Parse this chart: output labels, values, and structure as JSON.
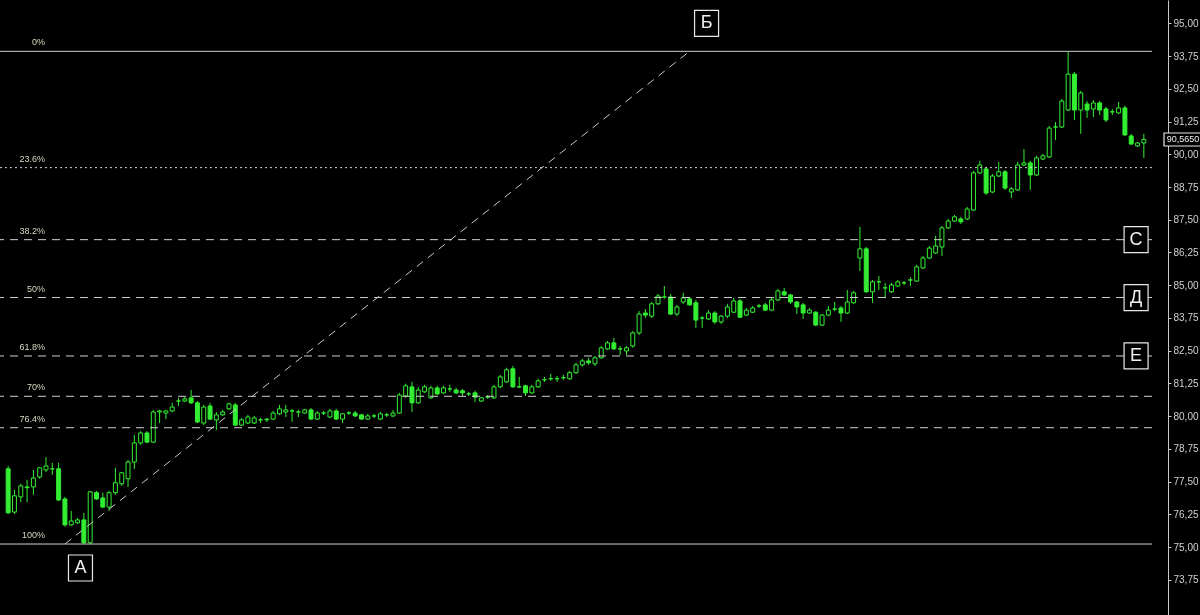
{
  "chart_data": {
    "type": "candlestick",
    "color": "#33ee33",
    "categories": [
      null,
      null,
      null,
      null,
      null,
      null,
      null,
      null,
      null,
      null,
      null,
      null,
      null,
      null,
      null,
      null,
      null,
      null,
      null,
      null,
      null,
      null,
      null,
      null,
      null,
      null,
      null,
      null,
      null,
      null,
      null,
      null,
      null,
      null,
      null,
      null,
      null,
      null,
      null,
      null,
      null,
      null,
      null,
      null,
      null,
      null,
      null,
      null,
      null,
      null,
      null,
      null,
      null,
      null,
      null,
      null,
      null,
      null,
      null,
      null,
      null,
      null,
      null,
      null,
      null,
      null,
      null,
      null,
      null,
      null,
      null,
      null,
      null,
      null,
      null,
      null,
      null,
      null,
      null,
      null,
      null,
      null,
      null,
      null,
      null,
      null,
      null,
      null,
      null,
      null,
      null,
      null,
      null,
      null,
      null,
      null,
      null,
      null,
      null,
      null,
      null,
      null,
      null,
      null,
      null,
      null,
      null,
      null,
      null,
      null,
      null,
      null,
      null,
      null,
      null,
      null,
      null,
      null,
      null,
      null,
      null,
      null,
      null,
      null,
      null,
      null,
      null,
      null,
      null,
      null,
      null,
      null,
      null,
      null,
      null,
      null,
      null,
      null,
      null,
      null,
      null,
      null,
      null,
      null,
      null,
      null,
      null,
      null,
      null,
      null,
      null,
      null,
      null,
      null,
      null,
      null,
      null,
      null,
      null,
      null,
      null,
      null,
      null,
      null,
      null,
      null,
      null,
      null,
      null,
      null,
      null,
      null,
      null,
      null,
      null,
      null,
      null,
      null,
      null,
      null,
      null
    ],
    "ohlc": [
      [
        77.99,
        78.1,
        76.27,
        76.31
      ],
      [
        76.34,
        77.19,
        76.27,
        76.96
      ],
      [
        76.92,
        77.42,
        76.72,
        77.34
      ],
      [
        77.3,
        77.57,
        76.72,
        77.27
      ],
      [
        77.3,
        77.95,
        77.0,
        77.64
      ],
      [
        77.68,
        78.06,
        77.61,
        78.03
      ],
      [
        77.95,
        78.44,
        77.87,
        78.1
      ],
      [
        77.99,
        78.22,
        77.76,
        77.99
      ],
      [
        77.99,
        78.22,
        76.76,
        76.8
      ],
      [
        76.84,
        76.92,
        75.78,
        75.85
      ],
      [
        75.85,
        76.38,
        75.81,
        76.0
      ],
      [
        75.93,
        76.11,
        75.89,
        76.04
      ],
      [
        76.04,
        76.31,
        75.12,
        75.17
      ],
      [
        75.17,
        77.15,
        75.12,
        77.11
      ],
      [
        77.08,
        77.15,
        76.8,
        76.84
      ],
      [
        76.88,
        77.08,
        76.49,
        76.53
      ],
      [
        76.53,
        77.15,
        76.38,
        77.08
      ],
      [
        77.08,
        78.03,
        77.0,
        77.46
      ],
      [
        77.42,
        77.87,
        77.34,
        77.84
      ],
      [
        77.61,
        78.33,
        77.3,
        78.25
      ],
      [
        78.25,
        79.28,
        77.99,
        78.98
      ],
      [
        78.98,
        79.43,
        78.9,
        79.36
      ],
      [
        79.36,
        79.43,
        78.98,
        79.01
      ],
      [
        79.01,
        80.24,
        78.98,
        80.16
      ],
      [
        80.16,
        80.24,
        79.74,
        80.2
      ],
      [
        80.12,
        80.24,
        79.89,
        80.2
      ],
      [
        80.2,
        80.51,
        80.16,
        80.35
      ],
      [
        80.58,
        80.7,
        80.39,
        80.58
      ],
      [
        80.58,
        80.73,
        80.54,
        80.66
      ],
      [
        80.7,
        81.0,
        80.47,
        80.51
      ],
      [
        80.51,
        80.58,
        79.74,
        79.78
      ],
      [
        79.74,
        80.43,
        79.66,
        80.35
      ],
      [
        80.39,
        80.51,
        79.86,
        79.89
      ],
      [
        79.86,
        80.16,
        79.47,
        80.05
      ],
      [
        80.05,
        80.24,
        80.01,
        80.16
      ],
      [
        80.28,
        80.51,
        80.24,
        80.47
      ],
      [
        80.43,
        80.51,
        79.63,
        79.66
      ],
      [
        79.66,
        79.93,
        79.63,
        79.86
      ],
      [
        79.74,
        80.05,
        79.7,
        79.97
      ],
      [
        79.74,
        80.01,
        79.7,
        79.93
      ],
      [
        79.86,
        79.93,
        79.74,
        79.86
      ],
      [
        79.86,
        79.93,
        79.78,
        79.89
      ],
      [
        79.89,
        80.2,
        79.86,
        80.12
      ],
      [
        80.09,
        80.43,
        80.05,
        80.28
      ],
      [
        80.16,
        80.43,
        79.97,
        80.24
      ],
      [
        80.2,
        80.28,
        79.78,
        80.2
      ],
      [
        80.16,
        80.24,
        79.97,
        80.16
      ],
      [
        80.12,
        80.28,
        80.09,
        80.24
      ],
      [
        80.24,
        80.31,
        79.86,
        79.89
      ],
      [
        79.89,
        80.2,
        79.86,
        80.12
      ],
      [
        80.12,
        80.2,
        80.05,
        80.12
      ],
      [
        79.97,
        80.28,
        79.93,
        80.2
      ],
      [
        80.2,
        80.28,
        79.86,
        79.89
      ],
      [
        79.89,
        80.12,
        79.74,
        80.09
      ],
      [
        80.12,
        80.2,
        80.05,
        80.12
      ],
      [
        80.12,
        80.2,
        79.97,
        80.01
      ],
      [
        80.05,
        80.09,
        79.86,
        79.89
      ],
      [
        79.89,
        80.09,
        79.86,
        80.01
      ],
      [
        80.01,
        80.09,
        79.93,
        80.01
      ],
      [
        79.89,
        80.16,
        79.86,
        80.09
      ],
      [
        80.05,
        80.12,
        79.97,
        80.05
      ],
      [
        80.01,
        80.24,
        79.97,
        80.12
      ],
      [
        80.12,
        80.89,
        80.09,
        80.81
      ],
      [
        80.77,
        81.24,
        80.7,
        81.16
      ],
      [
        81.12,
        81.31,
        80.16,
        80.51
      ],
      [
        80.51,
        81.12,
        80.47,
        81.0
      ],
      [
        80.93,
        81.2,
        80.89,
        81.12
      ],
      [
        80.7,
        81.16,
        80.66,
        81.08
      ],
      [
        81.08,
        81.16,
        80.81,
        80.85
      ],
      [
        80.89,
        81.16,
        80.85,
        81.08
      ],
      [
        81.04,
        81.2,
        80.93,
        81.04
      ],
      [
        81.0,
        81.08,
        80.85,
        80.89
      ],
      [
        80.97,
        81.04,
        80.77,
        80.89
      ],
      [
        80.85,
        80.93,
        80.77,
        80.85
      ],
      [
        80.89,
        80.97,
        80.54,
        80.73
      ],
      [
        80.58,
        80.73,
        80.54,
        80.7
      ],
      [
        80.73,
        80.81,
        80.66,
        80.73
      ],
      [
        80.7,
        81.2,
        80.66,
        81.12
      ],
      [
        81.12,
        81.58,
        81.08,
        81.5
      ],
      [
        81.31,
        81.85,
        81.27,
        81.77
      ],
      [
        81.81,
        81.92,
        81.08,
        81.12
      ],
      [
        81.12,
        81.5,
        81.08,
        81.12
      ],
      [
        81.16,
        81.2,
        80.77,
        80.89
      ],
      [
        80.89,
        81.2,
        80.85,
        81.12
      ],
      [
        81.12,
        81.43,
        81.08,
        81.35
      ],
      [
        81.39,
        81.5,
        81.31,
        81.39
      ],
      [
        81.43,
        81.62,
        81.35,
        81.43
      ],
      [
        81.43,
        81.54,
        81.31,
        81.43
      ],
      [
        81.47,
        81.58,
        81.39,
        81.47
      ],
      [
        81.43,
        81.73,
        81.39,
        81.66
      ],
      [
        81.66,
        82.04,
        81.62,
        81.96
      ],
      [
        81.96,
        82.19,
        81.89,
        82.11
      ],
      [
        82.11,
        82.23,
        81.96,
        82.04
      ],
      [
        82.0,
        82.3,
        81.92,
        82.23
      ],
      [
        82.23,
        82.68,
        82.19,
        82.61
      ],
      [
        82.57,
        82.87,
        82.53,
        82.8
      ],
      [
        82.8,
        82.99,
        82.53,
        82.57
      ],
      [
        82.57,
        82.68,
        82.34,
        82.57
      ],
      [
        82.49,
        82.68,
        82.34,
        82.61
      ],
      [
        82.68,
        83.25,
        82.61,
        83.18
      ],
      [
        83.18,
        84.01,
        83.1,
        83.9
      ],
      [
        83.94,
        84.09,
        83.75,
        83.86
      ],
      [
        83.82,
        84.36,
        83.75,
        84.29
      ],
      [
        84.29,
        84.67,
        84.25,
        84.59
      ],
      [
        84.55,
        84.97,
        84.48,
        84.55
      ],
      [
        84.55,
        84.67,
        83.86,
        83.9
      ],
      [
        83.9,
        84.25,
        83.82,
        84.17
      ],
      [
        84.36,
        84.71,
        84.29,
        84.52
      ],
      [
        84.48,
        84.55,
        84.21,
        84.25
      ],
      [
        84.33,
        84.44,
        83.37,
        83.67
      ],
      [
        83.75,
        83.82,
        83.37,
        83.75
      ],
      [
        83.71,
        84.05,
        83.67,
        83.94
      ],
      [
        83.94,
        84.01,
        83.52,
        83.6
      ],
      [
        83.6,
        83.86,
        83.52,
        83.82
      ],
      [
        83.82,
        84.29,
        83.75,
        84.17
      ],
      [
        83.97,
        84.52,
        83.94,
        84.4
      ],
      [
        84.4,
        84.48,
        83.75,
        83.78
      ],
      [
        83.86,
        84.13,
        83.82,
        84.05
      ],
      [
        83.97,
        84.21,
        83.94,
        84.13
      ],
      [
        84.21,
        84.29,
        84.13,
        84.21
      ],
      [
        84.25,
        84.33,
        84.01,
        84.05
      ],
      [
        84.05,
        84.55,
        84.01,
        84.44
      ],
      [
        84.44,
        84.86,
        84.4,
        84.78
      ],
      [
        84.75,
        84.9,
        84.59,
        84.63
      ],
      [
        84.63,
        84.67,
        84.29,
        84.36
      ],
      [
        84.36,
        84.4,
        83.9,
        84.17
      ],
      [
        84.25,
        84.33,
        83.71,
        83.94
      ],
      [
        83.94,
        84.13,
        83.9,
        84.05
      ],
      [
        83.97,
        84.01,
        83.44,
        83.48
      ],
      [
        83.48,
        83.9,
        83.44,
        83.86
      ],
      [
        83.86,
        84.21,
        83.82,
        84.05
      ],
      [
        84.09,
        84.36,
        84.01,
        84.09
      ],
      [
        84.13,
        84.21,
        83.6,
        83.94
      ],
      [
        83.94,
        84.82,
        83.9,
        84.36
      ],
      [
        84.33,
        84.78,
        84.29,
        84.71
      ],
      [
        86.04,
        87.23,
        85.54,
        86.39
      ],
      [
        86.39,
        86.46,
        84.71,
        84.75
      ],
      [
        84.75,
        85.2,
        84.33,
        85.13
      ],
      [
        85.13,
        85.35,
        84.82,
        85.13
      ],
      [
        84.9,
        85.09,
        84.55,
        84.9
      ],
      [
        84.75,
        85.09,
        84.71,
        85.01
      ],
      [
        84.97,
        85.2,
        84.94,
        85.13
      ],
      [
        85.09,
        85.16,
        85.01,
        85.09
      ],
      [
        85.2,
        85.31,
        84.97,
        85.2
      ],
      [
        85.16,
        85.78,
        85.13,
        85.7
      ],
      [
        85.66,
        86.12,
        85.62,
        86.04
      ],
      [
        86.04,
        86.5,
        86.0,
        86.42
      ],
      [
        86.23,
        86.88,
        86.2,
        86.5
      ],
      [
        86.46,
        87.26,
        86.12,
        87.19
      ],
      [
        87.19,
        87.53,
        87.15,
        87.45
      ],
      [
        87.45,
        87.68,
        87.42,
        87.61
      ],
      [
        87.53,
        87.61,
        87.34,
        87.42
      ],
      [
        87.53,
        87.99,
        87.49,
        87.91
      ],
      [
        87.87,
        89.36,
        87.84,
        89.29
      ],
      [
        89.29,
        89.75,
        89.25,
        89.59
      ],
      [
        89.44,
        89.52,
        88.45,
        88.52
      ],
      [
        88.56,
        89.25,
        88.52,
        89.17
      ],
      [
        89.17,
        89.71,
        89.13,
        89.33
      ],
      [
        89.33,
        89.4,
        88.64,
        88.71
      ],
      [
        88.56,
        88.75,
        88.33,
        88.68
      ],
      [
        88.64,
        89.71,
        88.6,
        89.59
      ],
      [
        89.59,
        90.2,
        89.55,
        89.67
      ],
      [
        89.67,
        89.75,
        88.64,
        89.21
      ],
      [
        89.21,
        89.94,
        89.17,
        89.86
      ],
      [
        89.82,
        90.01,
        89.78,
        89.94
      ],
      [
        89.9,
        91.08,
        89.86,
        91.0
      ],
      [
        91.04,
        91.23,
        90.55,
        91.04
      ],
      [
        91.04,
        92.11,
        91.0,
        92.03
      ],
      [
        91.69,
        93.9,
        91.65,
        93.06
      ],
      [
        93.06,
        93.14,
        91.31,
        91.69
      ],
      [
        91.69,
        92.42,
        90.78,
        92.34
      ],
      [
        91.92,
        92.03,
        91.39,
        91.69
      ],
      [
        91.73,
        92.07,
        91.42,
        91.96
      ],
      [
        91.96,
        92.03,
        91.5,
        91.69
      ],
      [
        91.73,
        91.81,
        91.23,
        91.31
      ],
      [
        91.62,
        91.73,
        91.5,
        91.62
      ],
      [
        91.58,
        92.0,
        91.54,
        91.77
      ],
      [
        91.77,
        91.85,
        90.7,
        90.74
      ],
      [
        90.7,
        90.78,
        90.36,
        90.39
      ],
      [
        90.32,
        90.47,
        90.28,
        90.43
      ],
      [
        90.43,
        90.78,
        89.86,
        90.565
      ]
    ],
    "series": [
      {
        "type": "line",
        "color": "#c8c8c8",
        "line_style": "dashed",
        "values": [
          null,
          null,
          null,
          null,
          null,
          null,
          null,
          null,
          null,
          75.12,
          null,
          null,
          null,
          null,
          null,
          null,
          null,
          null,
          null,
          null,
          null,
          null,
          null,
          null,
          null,
          null,
          null,
          null,
          null,
          null,
          null,
          null,
          null,
          null,
          null,
          null,
          null,
          null,
          null,
          null,
          null,
          null,
          null,
          null,
          null,
          null,
          null,
          null,
          null,
          null,
          null,
          null,
          null,
          null,
          null,
          null,
          null,
          null,
          null,
          null,
          null,
          null,
          null,
          null,
          null,
          null,
          null,
          null,
          null,
          null,
          null,
          null,
          null,
          null,
          null,
          null,
          null,
          null,
          null,
          null,
          null,
          null,
          null,
          null,
          null,
          null,
          null,
          null,
          null,
          null,
          null,
          null,
          null,
          null,
          null,
          null,
          null,
          null,
          null,
          null,
          null,
          null,
          null,
          null,
          null,
          null,
          null,
          null,
          93.93,
          null,
          null,
          null,
          null,
          null,
          null,
          null,
          null,
          null,
          null,
          null,
          null,
          null,
          null,
          null,
          null,
          null,
          null,
          null,
          null,
          null,
          null,
          null,
          null,
          null,
          null,
          null,
          null,
          null,
          null,
          null,
          null,
          null,
          null,
          null,
          null,
          null,
          null,
          null,
          null,
          null,
          null,
          null,
          null,
          null,
          null,
          null,
          null,
          null,
          null,
          null,
          null,
          null,
          null,
          null,
          null,
          null,
          null,
          null,
          null,
          null,
          null,
          null,
          null,
          null,
          null,
          null,
          null,
          null,
          null,
          null,
          null
        ]
      }
    ],
    "ylim": [
      72.41,
      95.89
    ],
    "yticks": [
      {
        "value": 73.75,
        "label": "73,75"
      },
      {
        "value": 75,
        "label": "75,00"
      },
      {
        "value": 76.25,
        "label": "76,25"
      },
      {
        "value": 77.5,
        "label": "77,50"
      },
      {
        "value": 78.75,
        "label": "78,75"
      },
      {
        "value": 80,
        "label": "80,00"
      },
      {
        "value": 81.25,
        "label": "81,25"
      },
      {
        "value": 82.5,
        "label": "82,50"
      },
      {
        "value": 83.75,
        "label": "83,75"
      },
      {
        "value": 85,
        "label": "85,00"
      },
      {
        "value": 86.25,
        "label": "86,25"
      },
      {
        "value": 87.5,
        "label": "87,50"
      },
      {
        "value": 88.75,
        "label": "88,75"
      },
      {
        "value": 90,
        "label": "90,00"
      },
      {
        "value": 91.25,
        "label": "91,25"
      },
      {
        "value": 92.5,
        "label": "92,50"
      },
      {
        "value": 93.75,
        "label": "93,75"
      },
      {
        "value": 95,
        "label": "95,00"
      }
    ],
    "tick_labels": "y",
    "ref_lines": [
      {
        "axis": "y",
        "value": 93.93,
        "color": "#d0d0d0",
        "line_style": "solid"
      },
      {
        "axis": "y",
        "value": 89.49,
        "color": "#d0d0d0",
        "line_style": "dotted"
      },
      {
        "axis": "y",
        "value": 86.74,
        "color": "#d0d0d0",
        "line_style": "dashed"
      },
      {
        "axis": "y",
        "value": 84.53,
        "color": "#d0d0d0",
        "line_style": "dashed"
      },
      {
        "axis": "y",
        "value": 82.3,
        "color": "#d0d0d0",
        "line_style": "dashed"
      },
      {
        "axis": "y",
        "value": 80.76,
        "color": "#d0d0d0",
        "line_style": "dashed"
      },
      {
        "axis": "y",
        "value": 79.56,
        "color": "#d0d0d0",
        "line_style": "dashed"
      },
      {
        "axis": "y",
        "value": 75.12,
        "color": "#d0d0d0",
        "line_style": "solid"
      }
    ],
    "annotations": [
      {
        "text": "0%",
        "y": 93.93
      },
      {
        "text": "23.6%",
        "y": 89.49
      },
      {
        "text": "38.2%",
        "y": 86.74
      },
      {
        "text": "50%",
        "y": 84.53
      },
      {
        "text": "61.8%",
        "y": 82.3
      },
      {
        "text": "70%",
        "y": 80.76
      },
      {
        "text": "76.4%",
        "y": 79.56
      },
      {
        "text": "100%",
        "y": 75.12
      },
      {
        "text": "А",
        "y": 75.12
      },
      {
        "text": "Б",
        "y": 93.93
      },
      {
        "text": "С",
        "y": 86.74
      },
      {
        "text": "Д",
        "y": 84.53
      },
      {
        "text": "Е",
        "y": 82.3
      },
      "90,5650"
    ]
  }
}
